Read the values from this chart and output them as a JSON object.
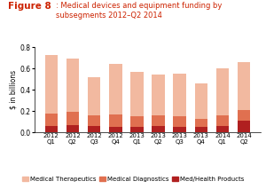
{
  "categories": [
    "2012\nQ1",
    "2012\nQ2",
    "2012\nQ3",
    "2012\nQ4",
    "2013\nQ1",
    "2013\nQ2",
    "2013\nQ3",
    "2013\nQ4",
    "2014\nQ1",
    "2014\nQ2"
  ],
  "med_therapeutics": [
    0.55,
    0.5,
    0.36,
    0.47,
    0.42,
    0.38,
    0.4,
    0.33,
    0.44,
    0.45
  ],
  "med_diagnostics": [
    0.12,
    0.12,
    0.1,
    0.12,
    0.1,
    0.1,
    0.1,
    0.08,
    0.1,
    0.1
  ],
  "med_health": [
    0.06,
    0.07,
    0.06,
    0.05,
    0.05,
    0.06,
    0.05,
    0.05,
    0.06,
    0.11
  ],
  "color_therapeutics": "#f2b9a0",
  "color_diagnostics": "#e07050",
  "color_health": "#b02020",
  "ylabel": "$ in billions",
  "ylim": [
    0,
    0.8
  ],
  "yticks": [
    0.0,
    0.2,
    0.4,
    0.6,
    0.8
  ],
  "title_color": "#cc2200",
  "background_color": "#ffffff"
}
